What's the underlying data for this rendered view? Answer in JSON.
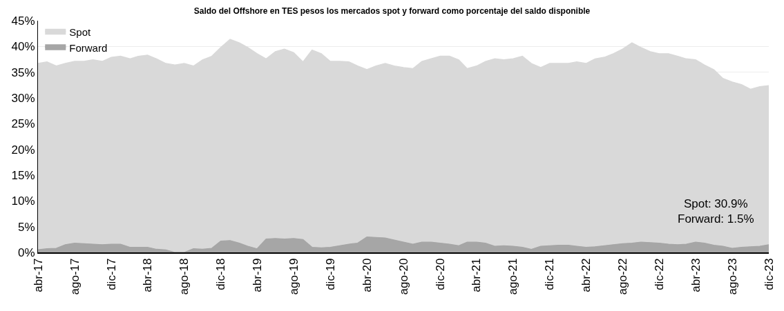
{
  "chart_data": {
    "type": "area",
    "stacked": true,
    "title": "Saldo del Offshore en TES pesos los mercados spot y forward como porcentaje del saldo disponible",
    "x": [
      "2017-04",
      "2017-05",
      "2017-06",
      "2017-07",
      "2017-08",
      "2017-09",
      "2017-10",
      "2017-11",
      "2017-12",
      "2018-01",
      "2018-02",
      "2018-03",
      "2018-04",
      "2018-05",
      "2018-06",
      "2018-07",
      "2018-08",
      "2018-09",
      "2018-10",
      "2018-11",
      "2018-12",
      "2019-01",
      "2019-02",
      "2019-03",
      "2019-04",
      "2019-05",
      "2019-06",
      "2019-07",
      "2019-08",
      "2019-09",
      "2019-10",
      "2019-11",
      "2019-12",
      "2020-01",
      "2020-02",
      "2020-03",
      "2020-04",
      "2020-05",
      "2020-06",
      "2020-07",
      "2020-08",
      "2020-09",
      "2020-10",
      "2020-11",
      "2020-12",
      "2021-01",
      "2021-02",
      "2021-03",
      "2021-04",
      "2021-05",
      "2021-06",
      "2021-07",
      "2021-08",
      "2021-09",
      "2021-10",
      "2021-11",
      "2021-12",
      "2022-01",
      "2022-02",
      "2022-03",
      "2022-04",
      "2022-05",
      "2022-06",
      "2022-07",
      "2022-08",
      "2022-09",
      "2022-10",
      "2022-11",
      "2022-12",
      "2023-01",
      "2023-02",
      "2023-03",
      "2023-04",
      "2023-05",
      "2023-06",
      "2023-07",
      "2023-08",
      "2023-09",
      "2023-10",
      "2023-11",
      "2023-12"
    ],
    "series": [
      {
        "name": "Forward",
        "color": "#a6a6a6",
        "values": [
          0.5,
          0.7,
          0.8,
          1.5,
          1.8,
          1.7,
          1.6,
          1.5,
          1.6,
          1.6,
          1.0,
          1.0,
          1.0,
          0.6,
          0.5,
          0.0,
          0.0,
          0.7,
          0.6,
          0.8,
          2.2,
          2.3,
          1.8,
          1.2,
          0.7,
          2.6,
          2.7,
          2.6,
          2.7,
          2.5,
          1.0,
          0.9,
          1.0,
          1.3,
          1.6,
          1.8,
          3.0,
          2.9,
          2.8,
          2.4,
          2.0,
          1.6,
          2.0,
          2.0,
          1.8,
          1.6,
          1.3,
          2.0,
          2.0,
          1.8,
          1.2,
          1.3,
          1.2,
          1.0,
          0.6,
          1.2,
          1.3,
          1.4,
          1.4,
          1.2,
          1.0,
          1.1,
          1.3,
          1.5,
          1.7,
          1.8,
          2.0,
          1.9,
          1.8,
          1.6,
          1.5,
          1.6,
          2.0,
          1.8,
          1.4,
          1.2,
          0.8,
          1.0,
          1.1,
          1.2,
          1.5
        ]
      },
      {
        "name": "Spot",
        "color": "#d9d9d9",
        "values": [
          36.2,
          36.3,
          35.4,
          35.2,
          35.3,
          35.4,
          35.8,
          35.6,
          36.3,
          36.5,
          36.6,
          37.1,
          37.3,
          37.0,
          36.2,
          36.4,
          36.7,
          35.5,
          36.8,
          37.3,
          37.6,
          39.1,
          38.9,
          38.6,
          37.9,
          35.0,
          36.3,
          36.9,
          36.1,
          34.5,
          38.3,
          37.7,
          36.1,
          35.8,
          35.4,
          34.4,
          32.5,
          33.3,
          33.9,
          33.8,
          33.9,
          34.1,
          35.1,
          35.6,
          36.3,
          36.5,
          36.1,
          33.7,
          34.2,
          35.3,
          36.4,
          36.1,
          36.4,
          37.1,
          36.1,
          34.7,
          35.4,
          35.3,
          35.3,
          35.8,
          35.7,
          36.5,
          36.6,
          37.1,
          37.8,
          38.9,
          37.8,
          37.1,
          36.8,
          37.0,
          36.6,
          36.0,
          35.4,
          34.6,
          34.1,
          32.6,
          32.3,
          31.6,
          30.6,
          31.0,
          30.9
        ]
      }
    ],
    "xlim": [
      "2017-04",
      "2023-12"
    ],
    "xticks": [
      {
        "value": "2017-04",
        "label": "abr-17"
      },
      {
        "value": "2017-08",
        "label": "ago-17"
      },
      {
        "value": "2017-12",
        "label": "dic-17"
      },
      {
        "value": "2018-04",
        "label": "abr-18"
      },
      {
        "value": "2018-08",
        "label": "ago-18"
      },
      {
        "value": "2018-12",
        "label": "dic-18"
      },
      {
        "value": "2019-04",
        "label": "abr-19"
      },
      {
        "value": "2019-08",
        "label": "ago-19"
      },
      {
        "value": "2019-12",
        "label": "dic-19"
      },
      {
        "value": "2020-04",
        "label": "abr-20"
      },
      {
        "value": "2020-08",
        "label": "ago-20"
      },
      {
        "value": "2020-12",
        "label": "dic-20"
      },
      {
        "value": "2021-04",
        "label": "abr-21"
      },
      {
        "value": "2021-08",
        "label": "ago-21"
      },
      {
        "value": "2021-12",
        "label": "dic-21"
      },
      {
        "value": "2022-04",
        "label": "abr-22"
      },
      {
        "value": "2022-08",
        "label": "ago-22"
      },
      {
        "value": "2022-12",
        "label": "dic-22"
      },
      {
        "value": "2023-04",
        "label": "abr-23"
      },
      {
        "value": "2023-08",
        "label": "ago-23"
      },
      {
        "value": "2023-12",
        "label": "dic-23"
      }
    ],
    "ylim": [
      0,
      45
    ],
    "yticks": [
      {
        "value": 0,
        "label": "0%"
      },
      {
        "value": 5,
        "label": "5%"
      },
      {
        "value": 10,
        "label": "10%"
      },
      {
        "value": 15,
        "label": "15%"
      },
      {
        "value": 20,
        "label": "20%"
      },
      {
        "value": 25,
        "label": "25%"
      },
      {
        "value": 30,
        "label": "30%"
      },
      {
        "value": 35,
        "label": "35%"
      },
      {
        "value": 40,
        "label": "40%"
      },
      {
        "value": 45,
        "label": "45%"
      }
    ],
    "grid": "y",
    "legend": "top left",
    "annotations": [
      "Spot: 30.9%\nForward: 1.5%"
    ]
  }
}
